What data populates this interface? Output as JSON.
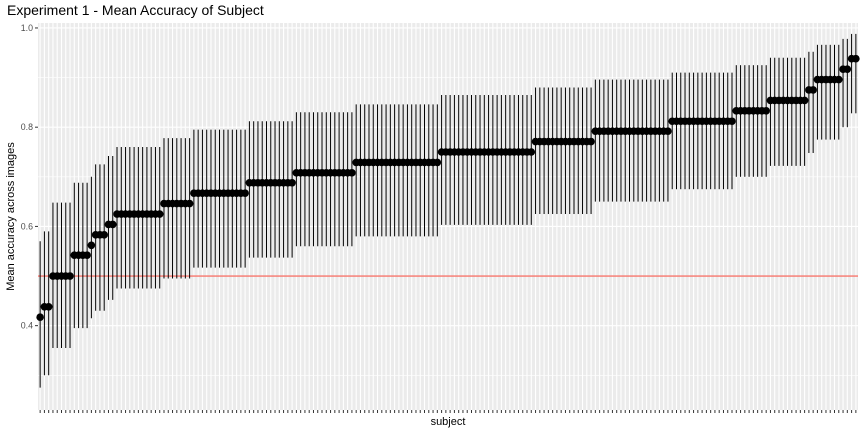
{
  "chart_data": {
    "type": "scatter",
    "title": "Experiment 1 - Mean Accuracy of Subject",
    "xlabel": "subject",
    "ylabel": "Mean accuracy across images",
    "ylim": [
      0.23,
      1.01
    ],
    "yticks": [
      0.4,
      0.6,
      0.8,
      1.0
    ],
    "ytick_labels": [
      "0.4",
      "0.6",
      "0.8",
      "1.0"
    ],
    "x_tick_labels_visible": false,
    "grid": true,
    "legend": "none",
    "reference_line": {
      "y": 0.5,
      "color": "#f8766d"
    },
    "colors": {
      "panel_bg": "#ebebeb",
      "grid": "#ffffff",
      "point": "#000000",
      "errorbar": "#000000"
    },
    "series": [
      {
        "name": "",
        "groups": [
          {
            "mean": 0.417,
            "low": 0.275,
            "high": 0.57,
            "count": 1
          },
          {
            "mean": 0.438,
            "low": 0.3,
            "high": 0.59,
            "count": 2
          },
          {
            "mean": 0.5,
            "low": 0.355,
            "high": 0.648,
            "count": 5
          },
          {
            "mean": 0.542,
            "low": 0.395,
            "high": 0.688,
            "count": 4
          },
          {
            "mean": 0.562,
            "low": 0.415,
            "high": 0.7,
            "count": 1
          },
          {
            "mean": 0.583,
            "low": 0.43,
            "high": 0.725,
            "count": 3
          },
          {
            "mean": 0.604,
            "low": 0.452,
            "high": 0.742,
            "count": 2
          },
          {
            "mean": 0.625,
            "low": 0.475,
            "high": 0.76,
            "count": 11
          },
          {
            "mean": 0.646,
            "low": 0.495,
            "high": 0.778,
            "count": 7
          },
          {
            "mean": 0.667,
            "low": 0.517,
            "high": 0.795,
            "count": 13
          },
          {
            "mean": 0.688,
            "low": 0.537,
            "high": 0.812,
            "count": 11
          },
          {
            "mean": 0.708,
            "low": 0.56,
            "high": 0.83,
            "count": 14
          },
          {
            "mean": 0.729,
            "low": 0.58,
            "high": 0.846,
            "count": 20
          },
          {
            "mean": 0.75,
            "low": 0.603,
            "high": 0.865,
            "count": 22
          },
          {
            "mean": 0.771,
            "low": 0.625,
            "high": 0.88,
            "count": 14
          },
          {
            "mean": 0.792,
            "low": 0.65,
            "high": 0.896,
            "count": 18
          },
          {
            "mean": 0.812,
            "low": 0.675,
            "high": 0.91,
            "count": 15
          },
          {
            "mean": 0.833,
            "low": 0.7,
            "high": 0.925,
            "count": 8
          },
          {
            "mean": 0.854,
            "low": 0.722,
            "high": 0.94,
            "count": 9
          },
          {
            "mean": 0.875,
            "low": 0.748,
            "high": 0.952,
            "count": 2
          },
          {
            "mean": 0.896,
            "low": 0.775,
            "high": 0.966,
            "count": 6
          },
          {
            "mean": 0.917,
            "low": 0.8,
            "high": 0.978,
            "count": 2
          },
          {
            "mean": 0.938,
            "low": 0.828,
            "high": 0.988,
            "count": 2
          }
        ]
      }
    ]
  }
}
